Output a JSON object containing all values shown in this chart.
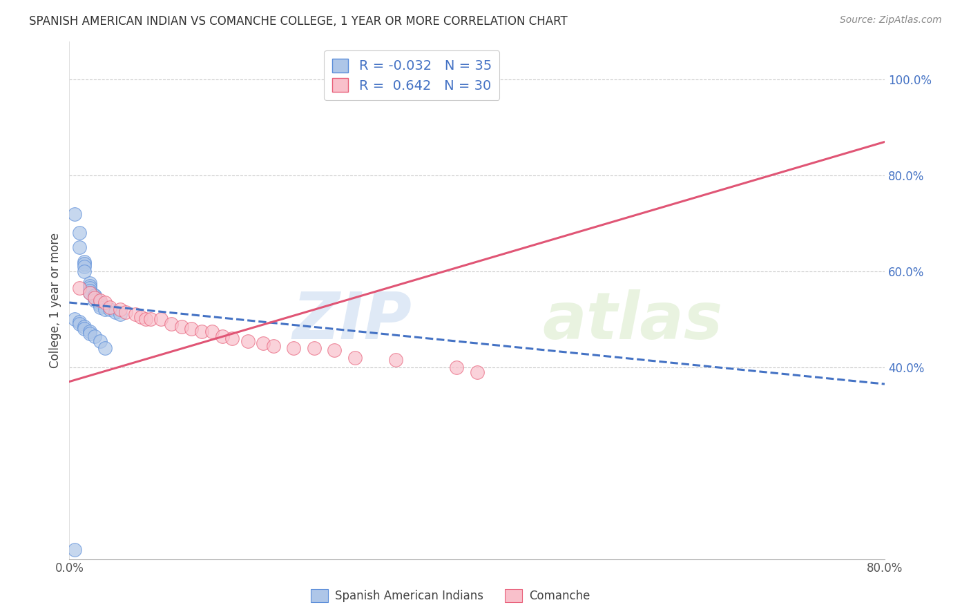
{
  "title": "SPANISH AMERICAN INDIAN VS COMANCHE COLLEGE, 1 YEAR OR MORE CORRELATION CHART",
  "source_text": "Source: ZipAtlas.com",
  "ylabel": "College, 1 year or more",
  "watermark_zip": "ZIP",
  "watermark_atlas": "atlas",
  "xlim": [
    0.0,
    0.8
  ],
  "ylim": [
    0.0,
    1.08
  ],
  "xticks": [
    0.0,
    0.8
  ],
  "xtick_labels": [
    "0.0%",
    "80.0%"
  ],
  "yticks": [
    0.4,
    0.6,
    0.8,
    1.0
  ],
  "ytick_labels": [
    "40.0%",
    "60.0%",
    "80.0%",
    "100.0%"
  ],
  "legend_labels": [
    "Spanish American Indians",
    "Comanche"
  ],
  "legend_R": [
    "-0.032",
    "0.642"
  ],
  "legend_N": [
    "35",
    "30"
  ],
  "blue_fill_color": "#AEC6E8",
  "blue_edge_color": "#5B8DD9",
  "pink_fill_color": "#F9C0CB",
  "pink_edge_color": "#E8607A",
  "blue_trend_color": "#4472C4",
  "pink_trend_color": "#E05575",
  "grid_color": "#CCCCCC",
  "background_color": "#FFFFFF",
  "ytick_label_color": "#4472C4",
  "xtick_label_color": "#555555",
  "blue_scatter_x": [
    0.005,
    0.01,
    0.01,
    0.015,
    0.015,
    0.015,
    0.015,
    0.02,
    0.02,
    0.02,
    0.02,
    0.02,
    0.025,
    0.025,
    0.025,
    0.025,
    0.03,
    0.03,
    0.03,
    0.03,
    0.035,
    0.04,
    0.045,
    0.05,
    0.005,
    0.01,
    0.01,
    0.015,
    0.015,
    0.02,
    0.02,
    0.025,
    0.03,
    0.035,
    0.005
  ],
  "blue_scatter_y": [
    0.72,
    0.68,
    0.65,
    0.62,
    0.615,
    0.61,
    0.6,
    0.575,
    0.57,
    0.565,
    0.56,
    0.555,
    0.55,
    0.55,
    0.545,
    0.54,
    0.535,
    0.535,
    0.53,
    0.525,
    0.52,
    0.52,
    0.515,
    0.51,
    0.5,
    0.495,
    0.49,
    0.485,
    0.48,
    0.475,
    0.47,
    0.465,
    0.455,
    0.44,
    0.02
  ],
  "pink_scatter_x": [
    0.01,
    0.02,
    0.025,
    0.03,
    0.035,
    0.04,
    0.05,
    0.055,
    0.065,
    0.07,
    0.075,
    0.08,
    0.09,
    0.1,
    0.11,
    0.12,
    0.13,
    0.14,
    0.15,
    0.16,
    0.175,
    0.19,
    0.2,
    0.22,
    0.24,
    0.26,
    0.28,
    0.32,
    0.38,
    0.4
  ],
  "pink_scatter_y": [
    0.565,
    0.555,
    0.545,
    0.54,
    0.535,
    0.525,
    0.52,
    0.515,
    0.51,
    0.505,
    0.5,
    0.5,
    0.5,
    0.49,
    0.485,
    0.48,
    0.475,
    0.475,
    0.465,
    0.46,
    0.455,
    0.45,
    0.445,
    0.44,
    0.44,
    0.435,
    0.42,
    0.415,
    0.4,
    0.39
  ],
  "blue_trend_x": [
    0.0,
    0.8
  ],
  "blue_trend_y": [
    0.535,
    0.365
  ],
  "pink_trend_x": [
    0.0,
    0.8
  ],
  "pink_trend_y": [
    0.37,
    0.87
  ]
}
